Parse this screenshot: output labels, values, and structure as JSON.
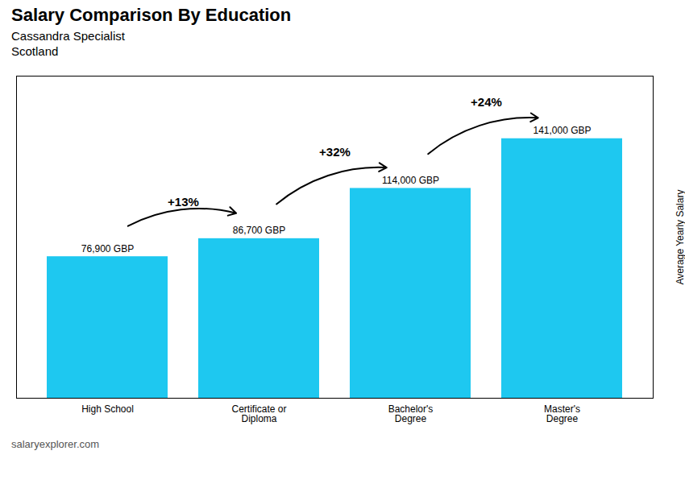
{
  "chart_data": {
    "type": "bar",
    "title": "Salary Comparison By Education",
    "subtitle": [
      "Cassandra Specialist",
      "Scotland"
    ],
    "caption": "salaryexplorer.com",
    "categories": [
      "High School",
      "Certificate or\nDiploma",
      "Bachelor's\nDegree",
      "Master's\nDegree"
    ],
    "values": [
      76900,
      86700,
      114000,
      141000
    ],
    "value_labels": [
      "76,900 GBP",
      "86,700 GBP",
      "114,000 GBP",
      "141,000 GBP"
    ],
    "data_labels": true,
    "annotations": [
      "+13%",
      "+32%",
      "+24%"
    ],
    "color": "#1ec8f0",
    "ylabel": "Average Yearly Salary",
    "ylim": [
      0,
      175000
    ],
    "yticks": [],
    "tick_labels": "x",
    "grid": false
  }
}
